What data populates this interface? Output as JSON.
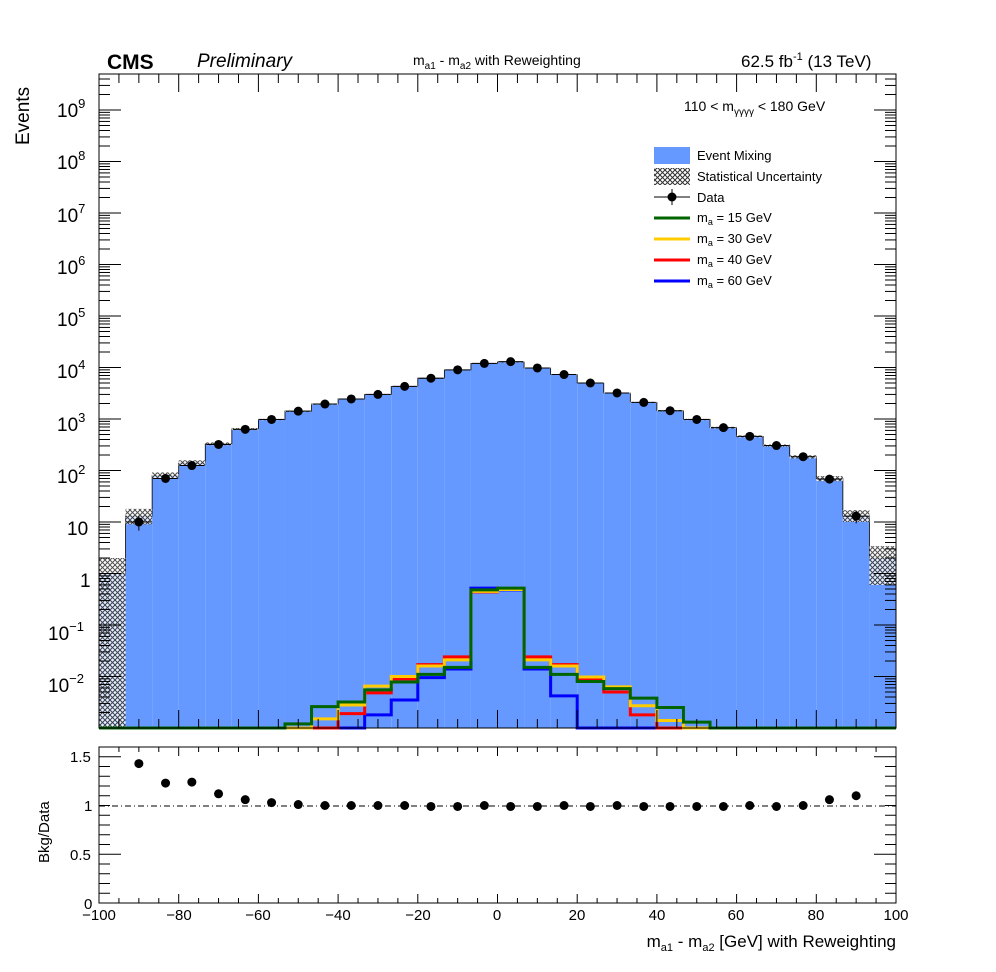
{
  "header": {
    "experiment": "CMS",
    "status": "Preliminary",
    "title_main": "m",
    "title_sub1": "a1",
    "title_mid": " - m",
    "title_sub2": "a2",
    "title_tail": "   with Reweighting",
    "lumi_main": "62.5 fb",
    "lumi_sup": "-1",
    "lumi_tail": " (13 TeV)"
  },
  "annotation": {
    "pre": "110 < m",
    "sub": "γγγγ",
    "post": " < 180 GeV"
  },
  "legend": {
    "position": "top-right",
    "event_mixing": "Event Mixing",
    "stat_unc": "Statistical Uncertainty",
    "data": "Data",
    "signals": [
      {
        "pre": "m",
        "sub": "a",
        "post": " = 15 GeV",
        "color": "#006400"
      },
      {
        "pre": "m",
        "sub": "a",
        "post": " = 30 GeV",
        "color": "#ffcc00"
      },
      {
        "pre": "m",
        "sub": "a",
        "post": " = 40 GeV",
        "color": "#ff0000"
      },
      {
        "pre": "m",
        "sub": "a",
        "post": " = 60 GeV",
        "color": "#0000ff"
      }
    ]
  },
  "colors": {
    "background_fill": "#6699ff",
    "signal_15": "#006400",
    "signal_30": "#ffcc00",
    "signal_40": "#ff0000",
    "signal_60": "#0000ff",
    "data": "#000000"
  },
  "axes": {
    "ylabel_top": "Events",
    "ylabel_bottom": "Bkg/Data",
    "xlabel_pre": "m",
    "xlabel_sub1": "a1",
    "xlabel_mid": " - m",
    "xlabel_sub2": "a2",
    "xlabel_post": "  [GeV] with Reweighting",
    "x_ticks": [
      "−100",
      "−80",
      "−60",
      "−40",
      "−20",
      "0",
      "20",
      "40",
      "60",
      "80",
      "100"
    ],
    "ratio_ticks": [
      "0",
      "0.5",
      "1",
      "1.5"
    ],
    "y_ticks": [
      {
        "main": "10",
        "sup": "9"
      },
      {
        "main": "10",
        "sup": "8"
      },
      {
        "main": "10",
        "sup": "7"
      },
      {
        "main": "10",
        "sup": "6"
      },
      {
        "main": "10",
        "sup": "5"
      },
      {
        "main": "10",
        "sup": "4"
      },
      {
        "main": "10",
        "sup": "3"
      },
      {
        "main": "10",
        "sup": "2"
      },
      {
        "main": "10",
        "sup": ""
      },
      {
        "main": "1",
        "sup": ""
      },
      {
        "main": "10",
        "sup": "−1"
      },
      {
        "main": "10",
        "sup": "−2"
      }
    ]
  },
  "chart_data": {
    "type": "bar",
    "x_range": [
      -100,
      100
    ],
    "bin_width": 6.667,
    "y_scale": "log",
    "ylim": [
      0.001,
      5000000000
    ],
    "ratio_ylim": [
      0,
      1.6
    ],
    "grid": false,
    "x_bin_centers": [
      -96.7,
      -90,
      -83.3,
      -76.7,
      -70,
      -63.3,
      -56.7,
      -50,
      -43.3,
      -36.7,
      -30,
      -23.3,
      -16.7,
      -10,
      -3.3,
      3.3,
      10,
      16.7,
      23.3,
      30,
      36.7,
      43.3,
      50,
      56.7,
      63.3,
      70,
      76.7,
      83.3,
      90,
      96.7
    ],
    "series": [
      {
        "name": "Event Mixing",
        "kind": "filled-histogram",
        "values": [
          1.0,
          13,
          80,
          140,
          330,
          640,
          980,
          1420,
          1950,
          2450,
          3000,
          4300,
          6200,
          9000,
          12000,
          12800,
          9800,
          7300,
          5000,
          3200,
          2100,
          1450,
          980,
          680,
          460,
          305,
          185,
          70,
          13,
          2.0
        ]
      },
      {
        "name": "Statistical Uncertainty",
        "kind": "band",
        "lower": [
          0.001,
          9,
          70,
          125,
          310,
          610,
          950,
          1380,
          1900,
          2400,
          2940,
          4200,
          6100,
          8850,
          11800,
          12600,
          9650,
          7180,
          4900,
          3130,
          2050,
          1410,
          950,
          655,
          440,
          290,
          172,
          62,
          10,
          0.6
        ],
        "upper": [
          2.0,
          18,
          92,
          158,
          352,
          670,
          1010,
          1460,
          2000,
          2500,
          3060,
          4400,
          6300,
          9150,
          12200,
          13000,
          9950,
          7420,
          5100,
          3270,
          2150,
          1490,
          1010,
          705,
          480,
          320,
          198,
          78,
          17,
          3.4
        ]
      },
      {
        "name": "Data",
        "kind": "points",
        "values": [
          null,
          10,
          70,
          125,
          320,
          630,
          980,
          1420,
          1950,
          2450,
          3000,
          4300,
          6200,
          9000,
          12000,
          13000,
          9800,
          7300,
          5000,
          3200,
          2100,
          1450,
          980,
          680,
          460,
          305,
          185,
          68,
          13,
          null
        ],
        "errors": [
          null,
          3.2,
          8.4,
          11.2,
          17.9,
          25.1,
          31.3,
          37.7,
          44.2,
          49.5,
          54.8,
          65.6,
          78.7,
          94.9,
          109.5,
          114.0,
          99.0,
          85.4,
          70.7,
          56.6,
          45.8,
          38.1,
          31.3,
          26.1,
          21.4,
          17.5,
          13.6,
          8.2,
          3.6,
          null
        ]
      },
      {
        "name": "m_a = 15 GeV",
        "kind": "line",
        "values": [
          0.001,
          0.001,
          0.001,
          0.001,
          0.001,
          0.001,
          0.001,
          0.0012,
          0.0026,
          0.0032,
          0.0055,
          0.0078,
          0.011,
          0.015,
          0.48,
          0.52,
          0.015,
          0.011,
          0.008,
          0.0058,
          0.0038,
          0.0025,
          0.0013,
          0.001,
          0.001,
          0.001,
          0.001,
          0.001,
          0.001,
          0.001
        ]
      },
      {
        "name": "m_a = 30 GeV",
        "kind": "line",
        "values": [
          0.001,
          0.001,
          0.001,
          0.001,
          0.001,
          0.001,
          0.001,
          0.001,
          0.0015,
          0.0028,
          0.0065,
          0.01,
          0.016,
          0.021,
          0.45,
          0.49,
          0.021,
          0.016,
          0.0098,
          0.0063,
          0.0027,
          0.0014,
          0.001,
          0.001,
          0.001,
          0.001,
          0.001,
          0.001,
          0.001,
          0.001
        ]
      },
      {
        "name": "m_a = 40 GeV",
        "kind": "line",
        "values": [
          0.001,
          0.001,
          0.001,
          0.001,
          0.001,
          0.001,
          0.001,
          0.001,
          0.001,
          0.0019,
          0.0048,
          0.009,
          0.017,
          0.024,
          0.44,
          0.5,
          0.024,
          0.017,
          0.009,
          0.005,
          0.0018,
          0.001,
          0.001,
          0.001,
          0.001,
          0.001,
          0.001,
          0.001,
          0.001,
          0.001
        ]
      },
      {
        "name": "m_a = 60 GeV",
        "kind": "line",
        "values": [
          0.001,
          0.001,
          0.001,
          0.001,
          0.001,
          0.001,
          0.001,
          0.001,
          0.001,
          0.001,
          0.0018,
          0.0035,
          0.0095,
          0.014,
          0.52,
          0.48,
          0.014,
          0.0042,
          0.001,
          0.001,
          0.001,
          0.001,
          0.001,
          0.001,
          0.001,
          0.001,
          0.001,
          0.001,
          0.001,
          0.001
        ]
      }
    ],
    "ratio": {
      "name": "Bkg/Data",
      "x": [
        -90,
        -83.3,
        -76.7,
        -70,
        -63.3,
        -56.7,
        -50,
        -43.3,
        -36.7,
        -30,
        -23.3,
        -16.7,
        -10,
        -3.3,
        3.3,
        10,
        16.7,
        23.3,
        30,
        36.7,
        43.3,
        50,
        56.7,
        63.3,
        70,
        76.7,
        83.3,
        90
      ],
      "values": [
        1.43,
        1.23,
        1.24,
        1.12,
        1.06,
        1.03,
        1.01,
        1.0,
        1.0,
        1.0,
        1.0,
        0.99,
        0.99,
        1.0,
        0.99,
        0.99,
        1.0,
        0.99,
        1.0,
        0.99,
        0.99,
        0.99,
        0.99,
        1.0,
        0.99,
        1.0,
        1.06,
        1.1
      ],
      "reference_line": 1
    }
  }
}
